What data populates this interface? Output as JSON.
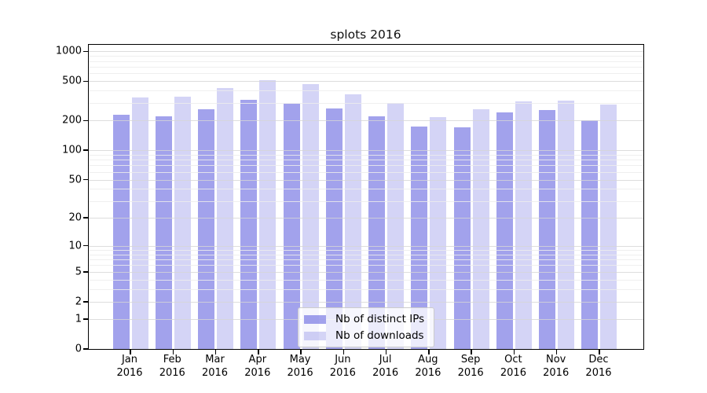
{
  "chart_data": {
    "type": "bar",
    "title": "splots 2016",
    "x_categories": [
      "Jan",
      "Feb",
      "Mar",
      "Apr",
      "May",
      "Jun",
      "Jul",
      "Aug",
      "Sep",
      "Oct",
      "Nov",
      "Dec"
    ],
    "x_year": "2016",
    "series": [
      {
        "name": "Nb of distinct IPs",
        "color": "rgba(85,85,221,0.55)",
        "values": [
          230,
          220,
          261,
          325,
          296,
          265,
          221,
          175,
          172,
          242,
          256,
          203
        ]
      },
      {
        "name": "Nb of downloads",
        "color": "rgba(85,85,221,0.25)",
        "values": [
          342,
          349,
          427,
          513,
          467,
          368,
          301,
          217,
          261,
          313,
          319,
          291
        ]
      }
    ],
    "y_axis": {
      "scale": "log1p",
      "ticks": [
        0,
        1,
        2,
        5,
        10,
        20,
        50,
        100,
        200,
        500,
        1000
      ],
      "minor_ticks": [
        3,
        4,
        6,
        7,
        8,
        9,
        30,
        40,
        60,
        70,
        80,
        90,
        300,
        400,
        600,
        700,
        800,
        900
      ],
      "range": [
        0,
        1165
      ],
      "grid": true
    },
    "legend": {
      "position": "lower center",
      "entries": [
        "Nb of distinct IPs",
        "Nb of downloads"
      ]
    },
    "colors": {
      "bar_base": "#5555dd",
      "grid_major": "#d6d6d6",
      "grid_minor": "#ececec",
      "spine": "#000000",
      "text": "#000000"
    }
  }
}
